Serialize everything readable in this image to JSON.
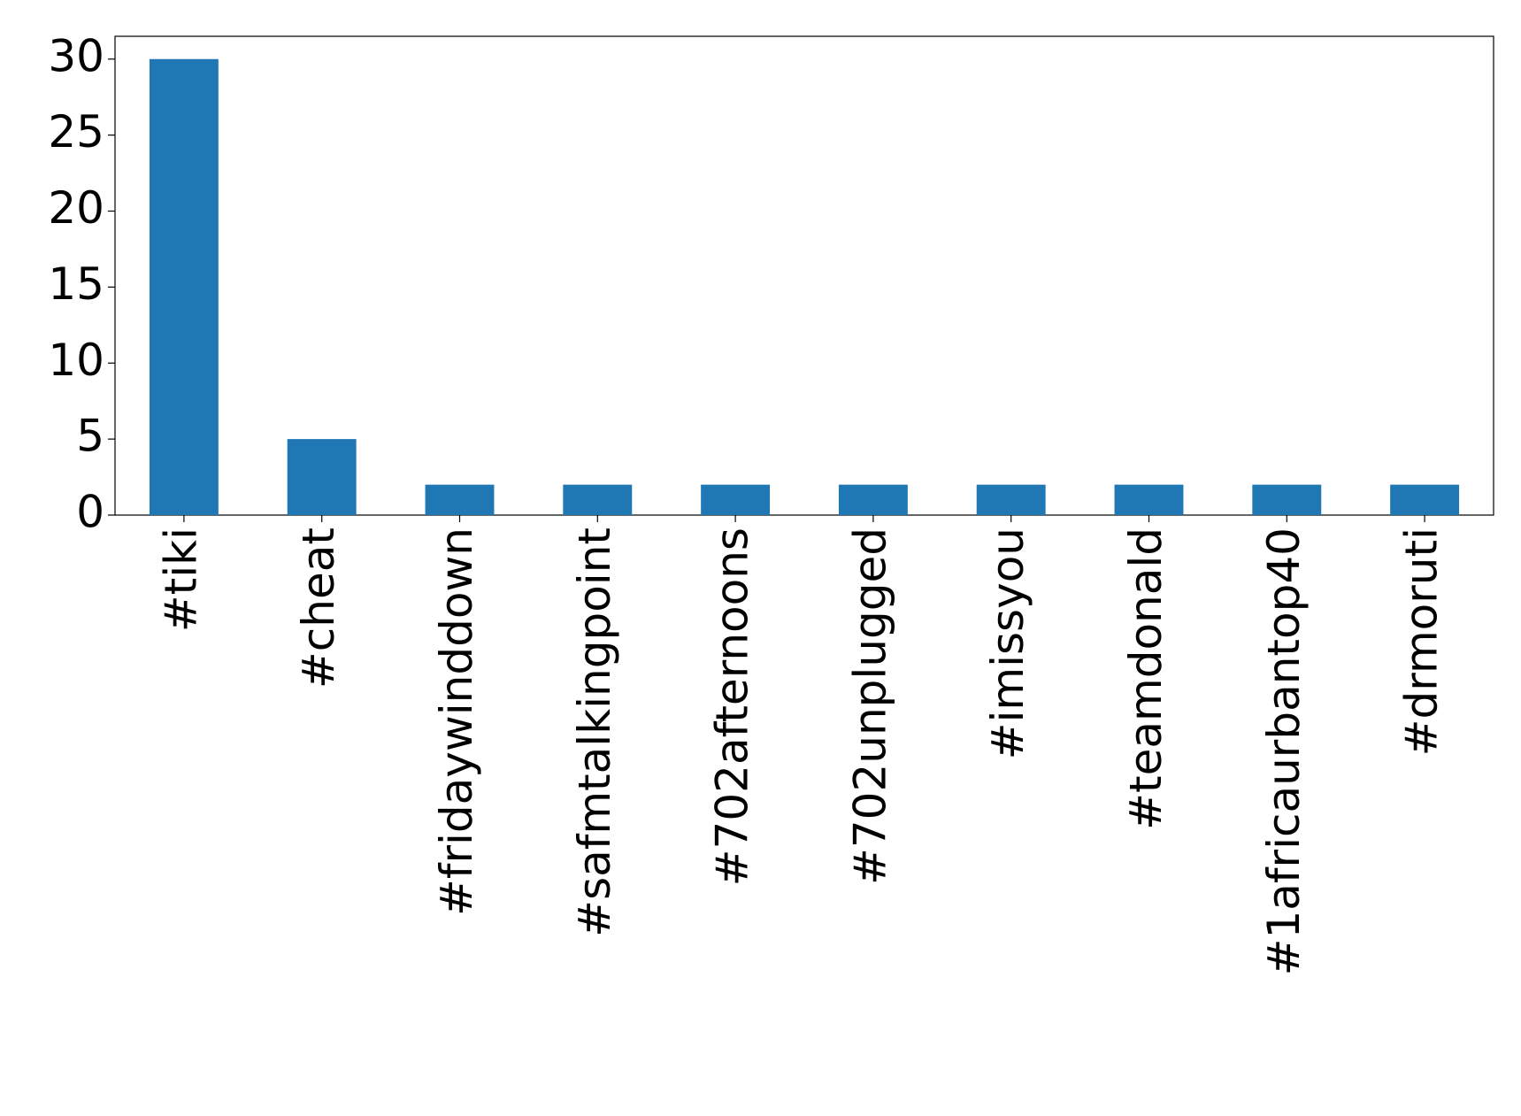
{
  "chart_data": {
    "type": "bar",
    "categories": [
      "#tiki",
      "#cheat",
      "#fridaywinddown",
      "#safmtalkingpoint",
      "#702afternoons",
      "#702unplugged",
      "#imissyou",
      "#teamdonald",
      "#1africaurbantop40",
      "#drmoruti"
    ],
    "values": [
      30,
      5,
      2,
      2,
      2,
      2,
      2,
      2,
      2,
      2
    ],
    "color": "#1f77b4",
    "ylim": [
      0,
      31.5
    ],
    "yticks": [
      0,
      5,
      10,
      15,
      20,
      25,
      30
    ],
    "grid": false
  }
}
